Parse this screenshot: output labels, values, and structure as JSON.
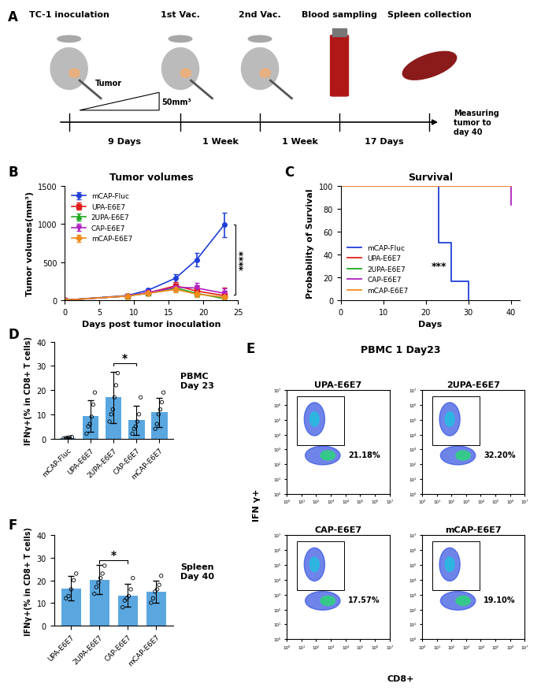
{
  "timeline": {
    "panel": "A",
    "events": [
      "TC-1 inoculation",
      "1st Vac.",
      "2nd Vac.",
      "Blood sampling",
      "Spleen collection"
    ],
    "intervals": [
      "9 Days",
      "1 Week",
      "1 Week",
      "17 Days"
    ],
    "tumor_label": "Tumor",
    "tumor_size": "50mm³",
    "end_label": "Measuring tumor to day 40"
  },
  "chart_data": [
    {
      "panel": "B",
      "type": "line",
      "title": "Tumor volumes",
      "xlabel": "Days post tumor inoculation",
      "ylabel": "Tumor volumes(mm³)",
      "x": [
        0,
        9,
        12,
        16,
        19,
        23
      ],
      "xlim": [
        0,
        25
      ],
      "xticks": [
        0,
        5,
        10,
        15,
        20,
        25
      ],
      "ylim": [
        0,
        1500
      ],
      "yticks": [
        0,
        500,
        1000,
        1500
      ],
      "legend": "upper left",
      "significance": "****",
      "series": [
        {
          "name": "mCAP-Fluc",
          "color": "#1f3fd8",
          "marker": "circle",
          "values": [
            0,
            60,
            130,
            290,
            530,
            990
          ],
          "errors": [
            0,
            10,
            20,
            50,
            90,
            160
          ]
        },
        {
          "name": "UPA-E6E7",
          "color": "#e0201b",
          "marker": "square",
          "values": [
            0,
            55,
            95,
            190,
            120,
            60
          ],
          "errors": [
            0,
            10,
            15,
            50,
            60,
            110
          ]
        },
        {
          "name": "2UPA-E6E7",
          "color": "#1fa81f",
          "marker": "triangle_up",
          "values": [
            0,
            55,
            90,
            160,
            90,
            20
          ],
          "errors": [
            0,
            10,
            15,
            40,
            40,
            20
          ]
        },
        {
          "name": "CAP-E6E7",
          "color": "#b020c0",
          "marker": "triangle_down",
          "values": [
            0,
            55,
            100,
            170,
            160,
            90
          ],
          "errors": [
            0,
            10,
            15,
            50,
            70,
            60
          ]
        },
        {
          "name": "mCAP-E6E7",
          "color": "#f08c1e",
          "marker": "diamond",
          "values": [
            0,
            55,
            90,
            140,
            80,
            40
          ],
          "errors": [
            0,
            10,
            15,
            40,
            40,
            30
          ]
        }
      ]
    },
    {
      "panel": "C",
      "type": "step",
      "title": "Survival",
      "xlabel": "Days",
      "ylabel": "Probability of Survival",
      "xlim": [
        0,
        42
      ],
      "xticks": [
        0,
        10,
        20,
        30,
        40
      ],
      "ylim": [
        0,
        100
      ],
      "yticks": [
        0,
        20,
        40,
        60,
        80,
        100
      ],
      "legend": "lower left",
      "significance": "***",
      "series": [
        {
          "name": "mCAP-Fluc",
          "color": "#1f3fd8",
          "x": [
            0,
            23,
            26,
            30
          ],
          "values": [
            100,
            50,
            16.7,
            0
          ]
        },
        {
          "name": "UPA-E6E7",
          "color": "#e0201b",
          "x": [
            0,
            40
          ],
          "values": [
            100,
            100
          ]
        },
        {
          "name": "2UPA-E6E7",
          "color": "#1fa81f",
          "x": [
            0,
            40
          ],
          "values": [
            100,
            100
          ]
        },
        {
          "name": "CAP-E6E7",
          "color": "#b020c0",
          "x": [
            0,
            40
          ],
          "values": [
            100,
            83.3
          ]
        },
        {
          "name": "mCAP-E6E7",
          "color": "#f08c1e",
          "x": [
            0,
            40
          ],
          "values": [
            100,
            100
          ]
        }
      ]
    },
    {
      "panel": "D",
      "type": "bar",
      "ylabel": "IFNγ+(% in CD8+ T cells)",
      "side_label": "PBMC Day 23",
      "categories": [
        "mCAP-Fluc",
        "UPA-E6E7",
        "2UPA-E6E7",
        "CAP-E6E7",
        "mCAP-E6E7"
      ],
      "values": [
        0.3,
        9.3,
        17,
        7.5,
        10.8
      ],
      "errors": [
        0.3,
        6.5,
        10.5,
        6,
        6
      ],
      "points": [
        [
          0,
          0.2,
          0.3,
          0.5,
          0.6
        ],
        [
          2,
          5,
          6,
          9,
          14,
          19
        ],
        [
          7,
          10,
          12,
          17,
          22,
          27
        ],
        [
          2,
          4,
          5,
          7,
          10,
          17
        ],
        [
          4,
          6,
          10,
          12,
          15,
          19
        ]
      ],
      "color": "#5aa7e0",
      "ylim": [
        0,
        40
      ],
      "yticks": [
        0,
        10,
        20,
        30,
        40
      ],
      "significance": {
        "pair": [
          "2UPA-E6E7",
          "CAP-E6E7"
        ],
        "label": "*"
      }
    },
    {
      "panel": "F",
      "type": "bar",
      "ylabel": "IFNγ+(% in CD8+ T cells)",
      "side_label": "Spleen Day 40",
      "categories": [
        "UPA-E6E7",
        "2UPA-E6E7",
        "CAP-E6E7",
        "mCAP-E6E7"
      ],
      "values": [
        16.5,
        20.3,
        13.3,
        15
      ],
      "errors": [
        5.5,
        6.5,
        5,
        5
      ],
      "points": [
        [
          12,
          13,
          16,
          20,
          23
        ],
        [
          14,
          17,
          19,
          21,
          23,
          26.5
        ],
        [
          8,
          11,
          12,
          13,
          16,
          21
        ],
        [
          10,
          12,
          15,
          16,
          18,
          22
        ]
      ],
      "color": "#5aa7e0",
      "ylim": [
        0,
        40
      ],
      "yticks": [
        0,
        10,
        20,
        30,
        40
      ],
      "significance": {
        "pair": [
          "2UPA-E6E7",
          "CAP-E6E7"
        ],
        "label": "*"
      }
    }
  ],
  "flow": {
    "panel": "E",
    "type": "flow_cytometry",
    "title": "PBMC 1 Day23",
    "xlabel": "CD8+",
    "ylabel": "IFN γ+",
    "log": true,
    "xlim": [
      1,
      10000000
    ],
    "ylim": [
      1,
      10000000
    ],
    "xticks": [
      {
        "value": 1,
        "label": "10⁰"
      },
      {
        "value": 10,
        "label": "10¹"
      },
      {
        "value": 100,
        "label": "10²"
      },
      {
        "value": 1000,
        "label": "10³"
      },
      {
        "value": 10000,
        "label": "10⁴"
      },
      {
        "value": 100000,
        "label": "10⁵"
      },
      {
        "value": 1000000,
        "label": "10⁶"
      },
      {
        "value": 10000000,
        "label": "10⁷"
      }
    ],
    "yticks": [
      {
        "value": 1,
        "label": "10⁰"
      },
      {
        "value": 10,
        "label": "10¹"
      },
      {
        "value": 100,
        "label": "10²"
      },
      {
        "value": 1000,
        "label": "10³"
      },
      {
        "value": 10000,
        "label": "10⁴"
      },
      {
        "value": 100000,
        "label": "10⁵"
      },
      {
        "value": 1000000,
        "label": "10⁶"
      },
      {
        "value": 10000000,
        "label": "10⁷"
      }
    ],
    "plots": [
      {
        "title": "UPA-E6E7",
        "gate_label": "21.18%"
      },
      {
        "title": "2UPA-E6E7",
        "gate_label": "32.20%"
      },
      {
        "title": "CAP-E6E7",
        "gate_label": "17.57%"
      },
      {
        "title": "mCAP-E6E7",
        "gate_label": "19.10%"
      }
    ]
  }
}
